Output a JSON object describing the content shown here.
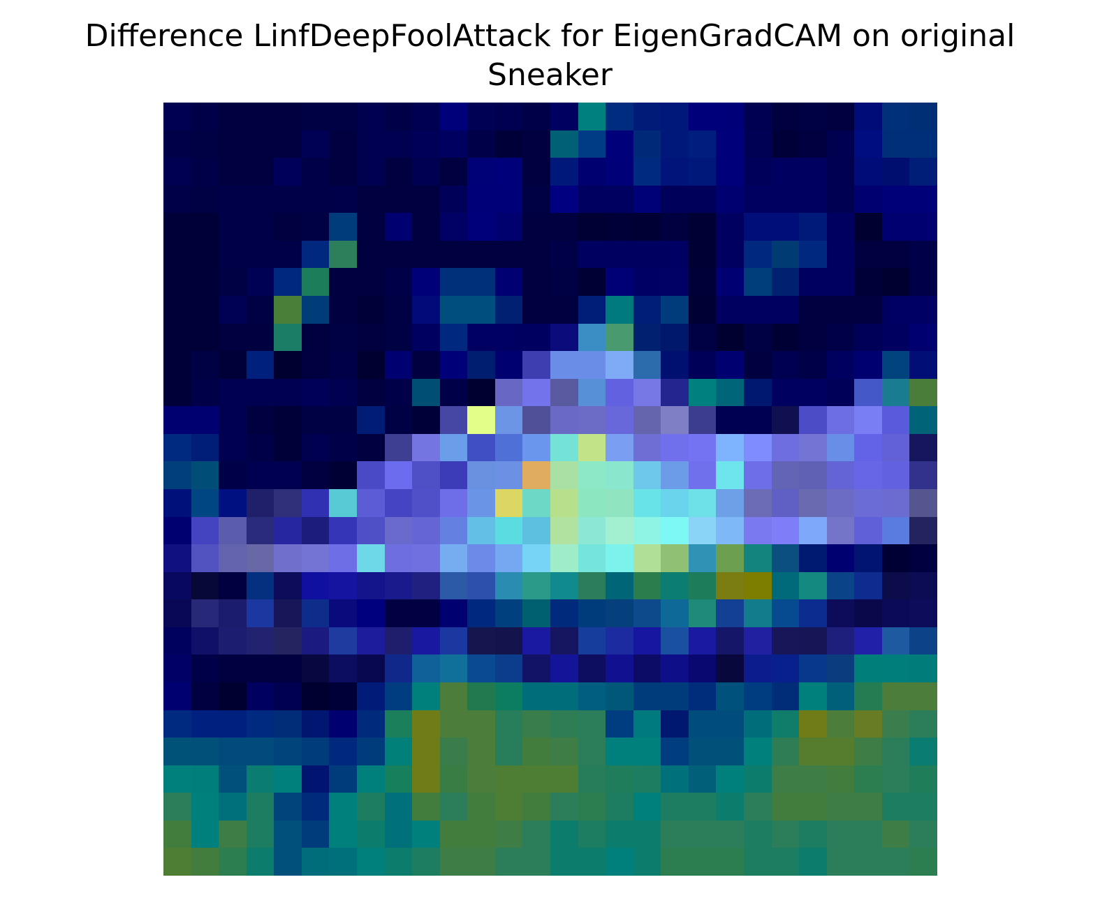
{
  "chart_data": {
    "type": "heatmap",
    "title_lines": [
      "Difference LinfDeepFoolAttack for EigenGradCAM on original",
      "Sneaker"
    ],
    "rows": 28,
    "cols": 28,
    "axes_visible": false,
    "colorbar": false,
    "cell_colors": [
      [
        "#000050",
        "#000048",
        "#000040",
        "#000040",
        "#000040",
        "#000045",
        "#000045",
        "#000050",
        "#000048",
        "#000050",
        "#00007a",
        "#000055",
        "#000050",
        "#000048",
        "#000060",
        "#00807f",
        "#002c7f",
        "#001c78",
        "#00187a",
        "#00007a",
        "#000079",
        "#000050",
        "#000040",
        "#000045",
        "#000040",
        "#000d79",
        "#00307a",
        "#002f76"
      ],
      [
        "#000048",
        "#000045",
        "#000040",
        "#000040",
        "#000040",
        "#000055",
        "#000040",
        "#000050",
        "#000050",
        "#000058",
        "#000060",
        "#000048",
        "#000038",
        "#000040",
        "#006075",
        "#003c85",
        "#00007a",
        "#002a78",
        "#00187a",
        "#001e7d",
        "#00007a",
        "#000055",
        "#000038",
        "#000040",
        "#000050",
        "#000d80",
        "#002f79",
        "#002f79"
      ],
      [
        "#000050",
        "#000048",
        "#000040",
        "#000040",
        "#00005a",
        "#000048",
        "#000040",
        "#000050",
        "#000040",
        "#000050",
        "#000040",
        "#000077",
        "#00007a",
        "#000040",
        "#001879",
        "#000070",
        "#000078",
        "#002a80",
        "#00147a",
        "#00187a",
        "#00007a",
        "#00005a",
        "#000060",
        "#000060",
        "#000050",
        "#000d79",
        "#000e70",
        "#001e78"
      ],
      [
        "#000048",
        "#000045",
        "#000048",
        "#000048",
        "#000048",
        "#000048",
        "#00004a",
        "#000040",
        "#000040",
        "#000040",
        "#000058",
        "#000079",
        "#000079",
        "#000045",
        "#000080",
        "#000060",
        "#000060",
        "#000077",
        "#00005a",
        "#00005a",
        "#000070",
        "#000060",
        "#000060",
        "#000060",
        "#000050",
        "#000070",
        "#000079",
        "#000079"
      ],
      [
        "#000038",
        "#000038",
        "#000048",
        "#000048",
        "#000040",
        "#000045",
        "#003c7c",
        "#000040",
        "#000070",
        "#000040",
        "#000065",
        "#00007a",
        "#00006f",
        "#000040",
        "#000040",
        "#000035",
        "#000038",
        "#000035",
        "#000040",
        "#000035",
        "#000060",
        "#000e79",
        "#000e79",
        "#001a79",
        "#000060",
        "#000030",
        "#000070",
        "#000070"
      ],
      [
        "#000038",
        "#000038",
        "#000048",
        "#000048",
        "#000048",
        "#00287f",
        "#2d7e5a",
        "#000040",
        "#000040",
        "#000040",
        "#000040",
        "#000040",
        "#000040",
        "#000040",
        "#000048",
        "#000060",
        "#000060",
        "#000060",
        "#000062",
        "#000035",
        "#000060",
        "#00287f",
        "#003b73",
        "#00287f",
        "#000060",
        "#000040",
        "#000040",
        "#000048"
      ],
      [
        "#000038",
        "#000038",
        "#000045",
        "#000055",
        "#00287f",
        "#1c7d5b",
        "#000040",
        "#000040",
        "#000048",
        "#000079",
        "#00307a",
        "#00307a",
        "#000073",
        "#000040",
        "#000045",
        "#000035",
        "#000074",
        "#000064",
        "#000065",
        "#000038",
        "#000072",
        "#003e79",
        "#002070",
        "#000060",
        "#000060",
        "#000038",
        "#000030",
        "#000048"
      ],
      [
        "#000038",
        "#000038",
        "#000055",
        "#000045",
        "#4a7f3a",
        "#003c78",
        "#000040",
        "#000038",
        "#000045",
        "#000b79",
        "#004e7d",
        "#004e7d",
        "#002072",
        "#000040",
        "#000040",
        "#001e78",
        "#007a7d",
        "#001e78",
        "#003c7b",
        "#000035",
        "#000060",
        "#000060",
        "#000060",
        "#000040",
        "#000040",
        "#000040",
        "#000062",
        "#000062"
      ],
      [
        "#000038",
        "#000038",
        "#000040",
        "#000040",
        "#1c7d66",
        "#000040",
        "#000045",
        "#000040",
        "#000045",
        "#000060",
        "#00287f",
        "#000062",
        "#000062",
        "#000060",
        "#0b0b7b",
        "#3b8ec4",
        "#499a6e",
        "#002070",
        "#00186c",
        "#000045",
        "#000030",
        "#000045",
        "#000035",
        "#000040",
        "#000048",
        "#000058",
        "#000060",
        "#000070"
      ],
      [
        "#000038",
        "#000045",
        "#000038",
        "#00207e",
        "#000030",
        "#000040",
        "#000048",
        "#000030",
        "#000070",
        "#000040",
        "#000078",
        "#001e70",
        "#000070",
        "#3e3eb0",
        "#6a8de8",
        "#6a8de8",
        "#7faaf6",
        "#2d6cac",
        "#001070",
        "#000058",
        "#000070",
        "#000040",
        "#000050",
        "#000048",
        "#000060",
        "#000070",
        "#00437d",
        "#000e75"
      ],
      [
        "#000038",
        "#000048",
        "#000050",
        "#000050",
        "#000050",
        "#000058",
        "#000050",
        "#000040",
        "#000048",
        "#004e74",
        "#000048",
        "#000030",
        "#6868c4",
        "#7373ec",
        "#5a5aa0",
        "#5790d6",
        "#6262e1",
        "#7777e6",
        "#252590",
        "#00807f",
        "#006578",
        "#001870",
        "#000060",
        "#000060",
        "#000058",
        "#4458c8",
        "#1a7c90",
        "#4b7d3a"
      ],
      [
        "#000070",
        "#000070",
        "#000050",
        "#000040",
        "#000038",
        "#000045",
        "#000045",
        "#001c75",
        "#000045",
        "#000038",
        "#4646a4",
        "#e2ff8a",
        "#6d95e5",
        "#505099",
        "#6a6ac6",
        "#6c6cc6",
        "#6868db",
        "#6565ad",
        "#7f7fc6",
        "#3d3d8d",
        "#000050",
        "#000050",
        "#101050",
        "#4c4cc6",
        "#6e6ee3",
        "#7a7ef5",
        "#5a5add",
        "#006377"
      ],
      [
        "#002a80",
        "#001e78",
        "#000050",
        "#000048",
        "#000038",
        "#000050",
        "#000048",
        "#000040",
        "#3e3e92",
        "#7575e2",
        "#6a9ee8",
        "#4050c4",
        "#4f70d6",
        "#6a96ee",
        "#74e2d6",
        "#c2e387",
        "#7a9ef2",
        "#6e6ed4",
        "#7070ec",
        "#7474f2",
        "#7db4fd",
        "#7f8cfe",
        "#6e6ee0",
        "#7474d4",
        "#698ee8",
        "#6363e8",
        "#6262d6",
        "#16165e"
      ],
      [
        "#003f79",
        "#004e78",
        "#000048",
        "#000050",
        "#000050",
        "#000040",
        "#000035",
        "#4a4ac6",
        "#6c6cee",
        "#5050c6",
        "#3c3cb9",
        "#6a90e0",
        "#6c90e4",
        "#dfac60",
        "#a9e0a3",
        "#8ce8c6",
        "#8ae6cc",
        "#6ec8ec",
        "#6c9ce8",
        "#7070ec",
        "#6ee4ec",
        "#6e6ee8",
        "#6464b5",
        "#6060b5",
        "#6464d6",
        "#6666e6",
        "#6262e0",
        "#32328c"
      ],
      [
        "#00107a",
        "#004682",
        "#001080",
        "#1f1f6a",
        "#2f2f7a",
        "#3030b3",
        "#58cad6",
        "#5c5cd6",
        "#4545c3",
        "#5050c8",
        "#6e6ee8",
        "#6a94e6",
        "#dcd662",
        "#6ed8c6",
        "#b6e08c",
        "#8ce6c0",
        "#90e4c0",
        "#68e4e8",
        "#6ad4ec",
        "#6ee0e8",
        "#6ea0e8",
        "#6c6cb6",
        "#6060c4",
        "#6a6ab0",
        "#6c6cc4",
        "#6c6cd6",
        "#6c6cd0",
        "#55558f"
      ],
      [
        "#000070",
        "#4444c0",
        "#5c5cac",
        "#2b2b7c",
        "#2626a0",
        "#1c1c7c",
        "#3535b8",
        "#5050c6",
        "#6a6acc",
        "#6565d6",
        "#6480e0",
        "#62c0e6",
        "#5adce0",
        "#5ec0e0",
        "#b2e2a0",
        "#8ce8d4",
        "#a2f0d0",
        "#8ef4e4",
        "#7ef8f4",
        "#8ad4f8",
        "#7eb8f6",
        "#7a7aee",
        "#7f7ef8",
        "#7ea8fa",
        "#7474c8",
        "#6060d8",
        "#5a7ce0",
        "#232360"
      ],
      [
        "#101080",
        "#5252c0",
        "#6464ae",
        "#6868a6",
        "#7070cc",
        "#7474d4",
        "#6e6ee6",
        "#6ed8e8",
        "#6e6ee0",
        "#7070e0",
        "#76acf0",
        "#6c8ae8",
        "#74a8f0",
        "#76d4f6",
        "#9eecc8",
        "#74e4dc",
        "#7cf2ec",
        "#b0e097",
        "#90c074",
        "#3093b6",
        "#6ca050",
        "#14847f",
        "#0a4f80",
        "#001a72",
        "#000070",
        "#001470",
        "#000035",
        "#000040"
      ],
      [
        "#080860",
        "#080838",
        "#000040",
        "#04307f",
        "#0c0c5b",
        "#1010a0",
        "#1414a0",
        "#14148b",
        "#1a1a8c",
        "#202080",
        "#2d5aa6",
        "#2c50ac",
        "#2a8cb0",
        "#2c9a88",
        "#108a8c",
        "#2c7d5c",
        "#006577",
        "#2c7d4d",
        "#0b7d71",
        "#1d7d5a",
        "#7b7d12",
        "#7d7d00",
        "#006a7a",
        "#14897f",
        "#0a4388",
        "#0e2c90",
        "#0c0c4a",
        "#0c0c54"
      ],
      [
        "#080856",
        "#282878",
        "#1c1c6c",
        "#1a38a0",
        "#161658",
        "#0e2c8a",
        "#0a0a7c",
        "#00007f",
        "#000042",
        "#000042",
        "#000070",
        "#00287f",
        "#00407f",
        "#006070",
        "#002a7c",
        "#003c7c",
        "#06407c",
        "#0c4a8c",
        "#0e6898",
        "#208a7a",
        "#144094",
        "#127c8c",
        "#064a8f",
        "#0c2c90",
        "#0c0c5a",
        "#08084a",
        "#0a0a58",
        "#0c0c5a"
      ],
      [
        "#00005f",
        "#101068",
        "#1c1c70",
        "#222270",
        "#242460",
        "#1a1a80",
        "#1e3ca0",
        "#1c1c9c",
        "#1e1e6c",
        "#1818a0",
        "#1a38a0",
        "#16164e",
        "#14144c",
        "#1a1aa0",
        "#161660",
        "#163c9c",
        "#1c2ca0",
        "#1616a0",
        "#1a50a0",
        "#1a1aa0",
        "#161668",
        "#2020a0",
        "#161658",
        "#161656",
        "#1e1e7c",
        "#2020a8",
        "#1e5aa0",
        "#0c4288"
      ],
      [
        "#000066",
        "#000048",
        "#000040",
        "#000040",
        "#000040",
        "#080840",
        "#0c0c60",
        "#080850",
        "#10288a",
        "#10609a",
        "#10709a",
        "#0a4a92",
        "#0c3c8c",
        "#121266",
        "#141498",
        "#0e0e60",
        "#101090",
        "#0c0c66",
        "#0e0e88",
        "#080870",
        "#08083c",
        "#0c1c8c",
        "#08208c",
        "#08388c",
        "#0a3c7e",
        "#007e7a",
        "#007e7c",
        "#007c7a"
      ],
      [
        "#000070",
        "#000040",
        "#000030",
        "#000060",
        "#000050",
        "#000030",
        "#000038",
        "#001c78",
        "#003c80",
        "#00807c",
        "#4d7d3a",
        "#20794f",
        "#0c7d61",
        "#006e7a",
        "#006e7a",
        "#005e80",
        "#005777",
        "#003c7c",
        "#003c7c",
        "#002c7c",
        "#00527c",
        "#003c80",
        "#002c78",
        "#00807c",
        "#00607c",
        "#237c52",
        "#4d7d3a",
        "#4d7d3a"
      ],
      [
        "#002a80",
        "#002080",
        "#002080",
        "#002a80",
        "#002c78",
        "#001670",
        "#000070",
        "#002a7c",
        "#1a7f5a",
        "#6f7c18",
        "#4d7d3a",
        "#4d7d3a",
        "#287d5a",
        "#387d4a",
        "#2f7d54",
        "#2c7d5a",
        "#003c80",
        "#007a7c",
        "#001870",
        "#004c7c",
        "#004c7c",
        "#006e7a",
        "#0f7d6a",
        "#6f7c18",
        "#4d7d3a",
        "#687c24",
        "#3b7d4c",
        "#2c7d5a"
      ],
      [
        "#005279",
        "#005079",
        "#004a7c",
        "#004a7c",
        "#00447c",
        "#003c7c",
        "#00287c",
        "#003c7c",
        "#008078",
        "#6f7c18",
        "#3a7d4a",
        "#4d7d3a",
        "#287d5a",
        "#437d3e",
        "#3e7d45",
        "#2c7d5a",
        "#00807c",
        "#00807c",
        "#003c80",
        "#00507a",
        "#00507a",
        "#00807c",
        "#2e7d54",
        "#567c2e",
        "#567c2e",
        "#3e7d45",
        "#2c7d5a",
        "#0a7d70"
      ],
      [
        "#00807c",
        "#007e7c",
        "#00507c",
        "#0a7d70",
        "#00807c",
        "#001470",
        "#003c7c",
        "#00807c",
        "#16805c",
        "#6f7c18",
        "#3a7d44",
        "#4d7d3a",
        "#4e7d34",
        "#4e7d34",
        "#4e7d34",
        "#267d5a",
        "#207d5c",
        "#1d7d60",
        "#00707a",
        "#00607a",
        "#00807c",
        "#0c7d6c",
        "#3e7d45",
        "#3e7d45",
        "#437d3e",
        "#2c7d50",
        "#2c7d5a",
        "#207d5a"
      ],
      [
        "#2c7d5a",
        "#00807c",
        "#00707a",
        "#1d7d60",
        "#00447c",
        "#002a7c",
        "#00807c",
        "#1d7d60",
        "#00707a",
        "#437d3e",
        "#2c7d5a",
        "#437d3e",
        "#4e7d34",
        "#437d3e",
        "#2c7d5a",
        "#2c7d50",
        "#1d7d60",
        "#00807c",
        "#1d7d60",
        "#1d7d60",
        "#0c7d6c",
        "#2c7d5a",
        "#437d3e",
        "#437d3e",
        "#3e7d45",
        "#3e7d45",
        "#1d7d60",
        "#1d7d60"
      ],
      [
        "#437d3e",
        "#00807c",
        "#3e7d45",
        "#1d7d60",
        "#00507c",
        "#003c7c",
        "#00807c",
        "#0c7d6c",
        "#00707a",
        "#00807c",
        "#437d3e",
        "#437d3e",
        "#3e7d45",
        "#2c7d5a",
        "#0c7d6c",
        "#1d7d60",
        "#0c7d6c",
        "#0c7d6c",
        "#2c7d5a",
        "#2c7d5a",
        "#2c7d5a",
        "#1d7d60",
        "#2c7d5a",
        "#1d7d60",
        "#2c7d5a",
        "#2c7d5a",
        "#3e7d45",
        "#2c7d5a"
      ],
      [
        "#4e7d34",
        "#437d3e",
        "#2c7d50",
        "#0c7d6c",
        "#00507c",
        "#006e7a",
        "#00707a",
        "#00807c",
        "#0c7d6c",
        "#1d7d60",
        "#3e7d45",
        "#3e7d45",
        "#2c7d5a",
        "#2c7d5a",
        "#0c7d6c",
        "#0c7d6c",
        "#00807c",
        "#0c7d6c",
        "#2c7d50",
        "#2c7d50",
        "#2c7d50",
        "#1d7d60",
        "#1d7d60",
        "#0c7d6c",
        "#2c7d5a",
        "#2c7d5a",
        "#2c7d5a",
        "#2c7d50"
      ]
    ]
  }
}
